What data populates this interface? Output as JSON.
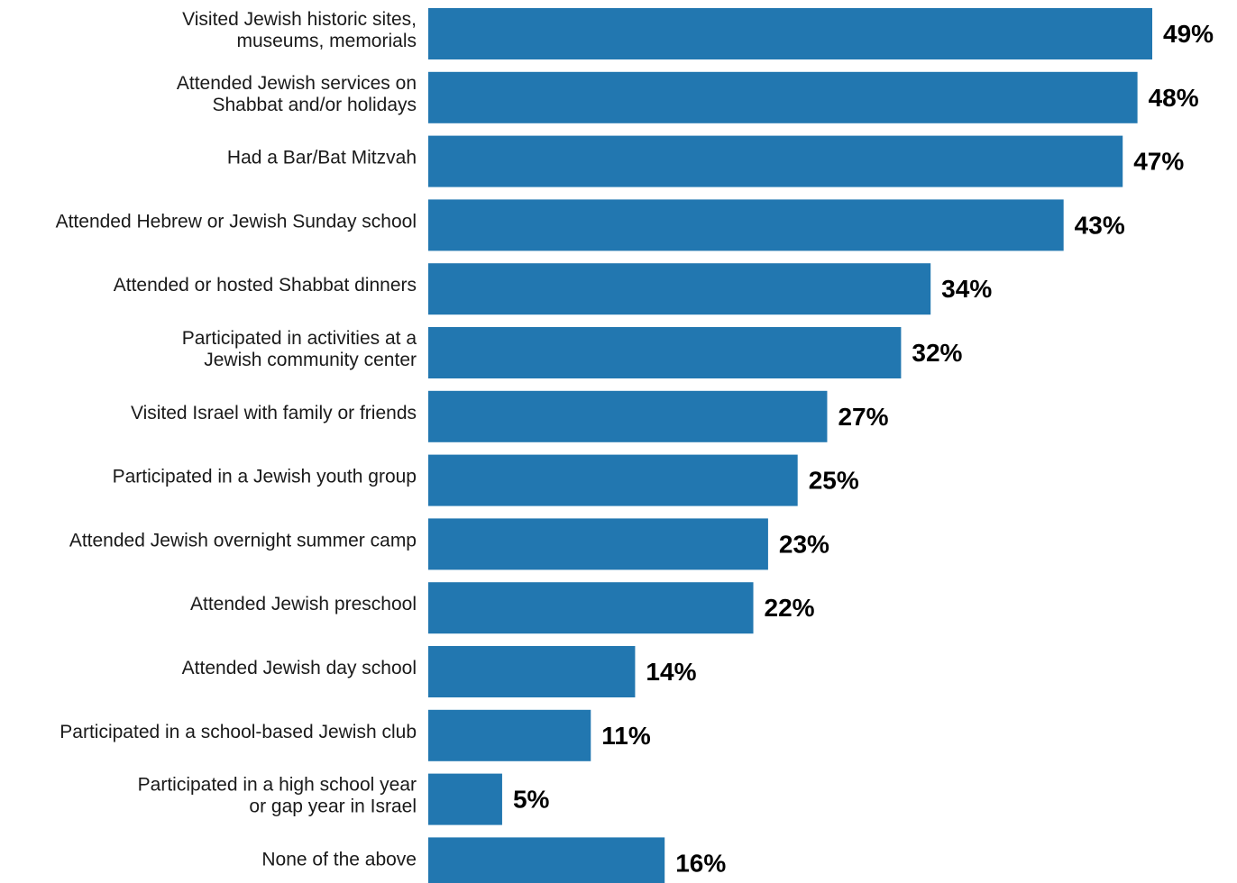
{
  "chart_data": {
    "type": "bar",
    "orientation": "horizontal",
    "title": "",
    "xlabel": "",
    "ylabel": "",
    "categories": [
      [
        "Visited Jewish historic sites,",
        "museums, memorials"
      ],
      [
        "Attended Jewish services on",
        "Shabbat and/or holidays"
      ],
      [
        "Had a Bar/Bat Mitzvah"
      ],
      [
        "Attended Hebrew or Jewish Sunday school"
      ],
      [
        "Attended or hosted Shabbat dinners"
      ],
      [
        "Participated in activities at a",
        "Jewish community center"
      ],
      [
        "Visited Israel with family or friends"
      ],
      [
        "Participated in a Jewish youth group"
      ],
      [
        "Attended Jewish overnight summer camp"
      ],
      [
        "Attended Jewish preschool"
      ],
      [
        "Attended Jewish day school"
      ],
      [
        "Participated in a school-based Jewish club"
      ],
      [
        "Participated in a high school year",
        "or gap year in Israel"
      ],
      [
        "None of the above"
      ]
    ],
    "values": [
      49,
      48,
      47,
      43,
      34,
      32,
      27,
      25,
      23,
      22,
      14,
      11,
      5,
      16
    ],
    "value_labels": [
      "49%",
      "48%",
      "47%",
      "43%",
      "34%",
      "32%",
      "27%",
      "25%",
      "23%",
      "22%",
      "14%",
      "11%",
      "5%",
      "16%"
    ],
    "xlim": [
      0,
      49
    ],
    "grid": false,
    "bar_color": "#2277b0",
    "value_label_color": "#000000",
    "category_label_color": "#1a1a1a"
  }
}
